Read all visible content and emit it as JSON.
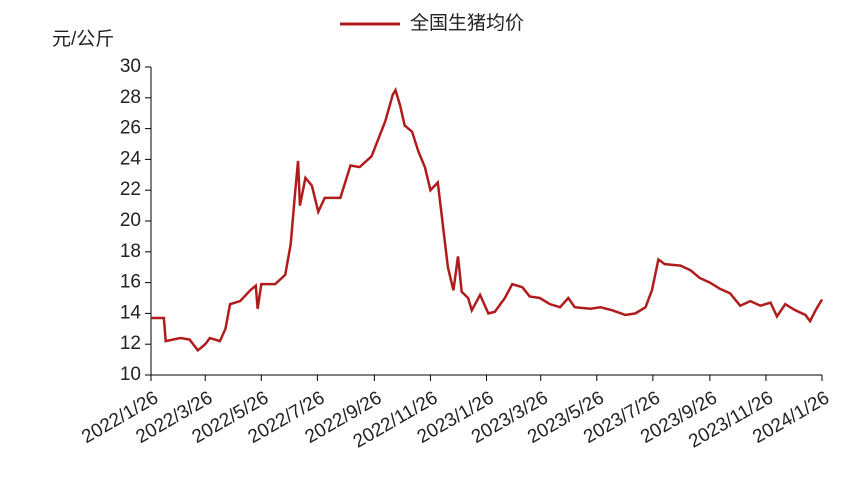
{
  "chart_data": {
    "type": "line",
    "y_label": "元/公斤",
    "legend": "top",
    "x": [
      "2022/1/26",
      "2022/2/9",
      "2022/2/11",
      "2022/2/27",
      "2022/3/9",
      "2022/3/18",
      "2022/3/26",
      "2022/3/31",
      "2022/4/11",
      "2022/4/17",
      "2022/4/22",
      "2022/5/3",
      "2022/5/14",
      "2022/5/20",
      "2022/5/22",
      "2022/5/26",
      "2022/6/10",
      "2022/6/21",
      "2022/6/27",
      "2022/7/2",
      "2022/7/5",
      "2022/7/7",
      "2022/7/13",
      "2022/7/20",
      "2022/7/27",
      "2022/8/3",
      "2022/8/20",
      "2022/8/31",
      "2022/9/10",
      "2022/9/23",
      "2022/10/8",
      "2022/10/16",
      "2022/10/19",
      "2022/10/24",
      "2022/10/29",
      "2022/11/6",
      "2022/11/13",
      "2022/11/20",
      "2022/11/26",
      "2022/12/4",
      "2022/12/11",
      "2022/12/15",
      "2022/12/21",
      "2022/12/26",
      "2022/12/30",
      "2023/1/6",
      "2023/1/10",
      "2023/1/19",
      "2023/1/28",
      "2023/2/4",
      "2023/2/15",
      "2023/2/23",
      "2023/3/6",
      "2023/3/14",
      "2023/3/25",
      "2023/4/5",
      "2023/4/16",
      "2023/4/25",
      "2023/5/2",
      "2023/5/19",
      "2023/5/30",
      "2023/6/12",
      "2023/6/26",
      "2023/7/7",
      "2023/7/18",
      "2023/7/25",
      "2023/8/1",
      "2023/8/8",
      "2023/8/25",
      "2023/9/5",
      "2023/9/15",
      "2023/9/26",
      "2023/10/7",
      "2023/10/18",
      "2023/10/29",
      "2023/11/9",
      "2023/11/20",
      "2023/12/1",
      "2023/12/8",
      "2023/12/17",
      "2023/12/28",
      "2024/1/8",
      "2024/1/13",
      "2024/1/19",
      "2024/1/26"
    ],
    "series": [
      {
        "name": "全国生猪均价",
        "color": "#b01c1c",
        "values": [
          13.7,
          13.7,
          12.2,
          12.4,
          12.3,
          11.6,
          12.0,
          12.4,
          12.2,
          13.0,
          14.6,
          14.8,
          15.5,
          15.8,
          14.3,
          15.9,
          15.9,
          16.5,
          18.5,
          22.0,
          23.9,
          21.0,
          22.8,
          22.3,
          20.6,
          21.5,
          21.5,
          23.6,
          23.5,
          24.2,
          26.5,
          28.2,
          28.5,
          27.5,
          26.2,
          25.8,
          24.5,
          23.5,
          22.0,
          22.5,
          19.0,
          17.0,
          15.5,
          17.7,
          15.4,
          15.0,
          14.2,
          15.2,
          14.0,
          14.1,
          15.0,
          15.9,
          15.7,
          15.1,
          15.0,
          14.6,
          14.4,
          15.0,
          14.4,
          14.3,
          14.4,
          14.2,
          13.9,
          14.0,
          14.4,
          15.5,
          17.5,
          17.2,
          17.1,
          16.8,
          16.3,
          16.0,
          15.6,
          15.3,
          14.5,
          14.8,
          14.5,
          14.7,
          13.8,
          14.6,
          14.2,
          13.9,
          13.5,
          14.2,
          14.9
        ]
      }
    ],
    "xlim": [
      "2022/1/26",
      "2024/1/26"
    ],
    "xticks": [
      "2022/1/26",
      "2022/3/26",
      "2022/5/26",
      "2022/7/26",
      "2022/9/26",
      "2022/11/26",
      "2023/1/26",
      "2023/3/26",
      "2023/5/26",
      "2023/7/26",
      "2023/9/26",
      "2023/11/26",
      "2024/1/26"
    ],
    "ylim": [
      10,
      30
    ],
    "yticks": [
      10,
      12,
      14,
      16,
      18,
      20,
      22,
      24,
      26,
      28,
      30
    ]
  }
}
